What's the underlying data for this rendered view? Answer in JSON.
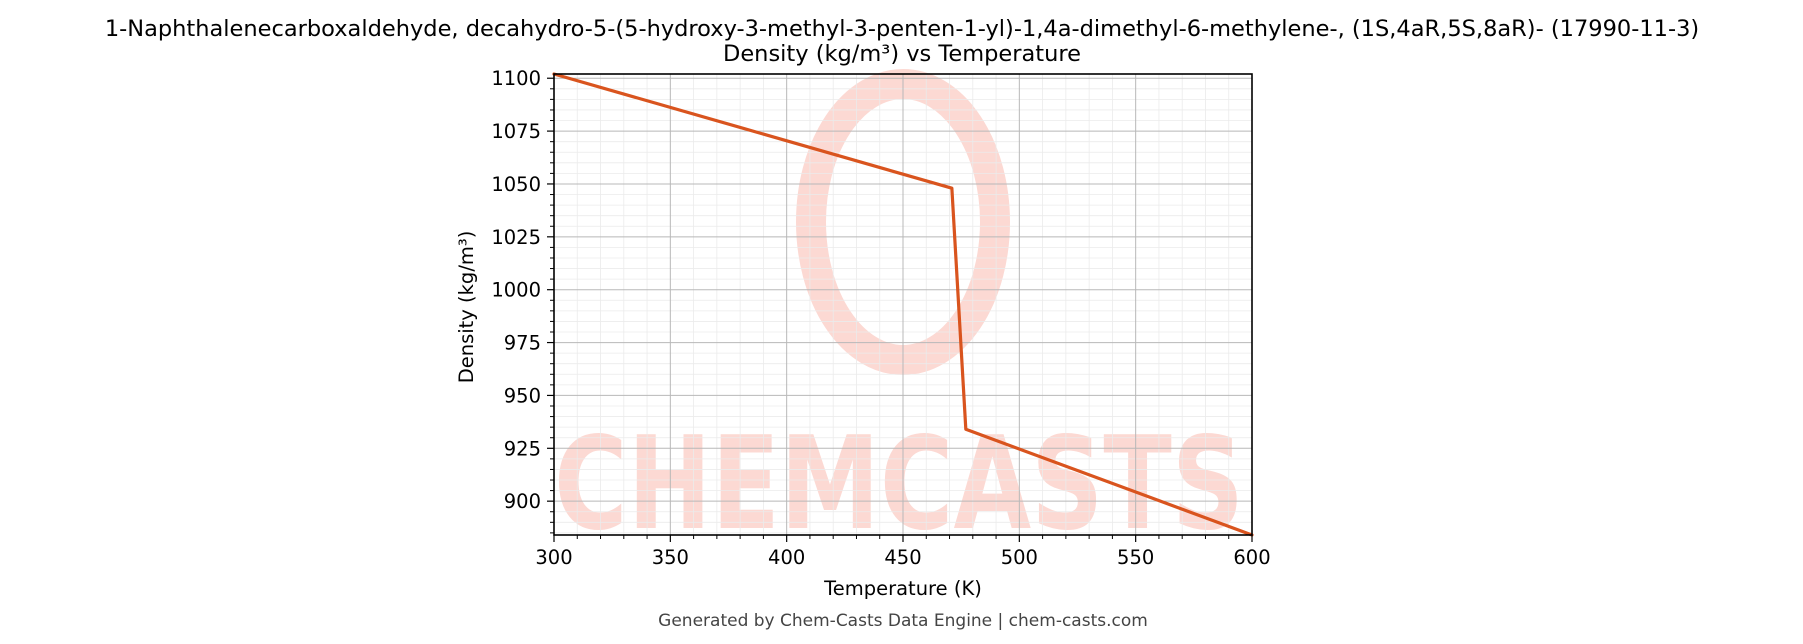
{
  "chart_data": {
    "type": "line",
    "title": "1-Naphthalenecarboxaldehyde, decahydro-5-(5-hydroxy-3-methyl-3-penten-1-yl)-1,4a-dimethyl-6-methylene-, (1S,4aR,5S,8aR)- (17990-11-3)",
    "subtitle": "Density (kg/m³) vs Temperature",
    "xlabel": "Temperature (K)",
    "ylabel": "Density (kg/m³)",
    "xlim": [
      300,
      600
    ],
    "ylim": [
      884,
      1102
    ],
    "xticks": [
      300,
      350,
      400,
      450,
      500,
      550,
      600
    ],
    "yticks": [
      900,
      925,
      950,
      975,
      1000,
      1025,
      1050,
      1075,
      1100
    ],
    "grid": true,
    "series": [
      {
        "color": "#d9541e",
        "x": [
          300,
          471,
          477,
          600
        ],
        "y": [
          1102,
          1048,
          934,
          884
        ]
      }
    ]
  },
  "watermark": {
    "text": "CHEMCASTS",
    "color": "#fcd9d3"
  },
  "footer": "Generated by Chem-Casts Data Engine | chem-casts.com"
}
